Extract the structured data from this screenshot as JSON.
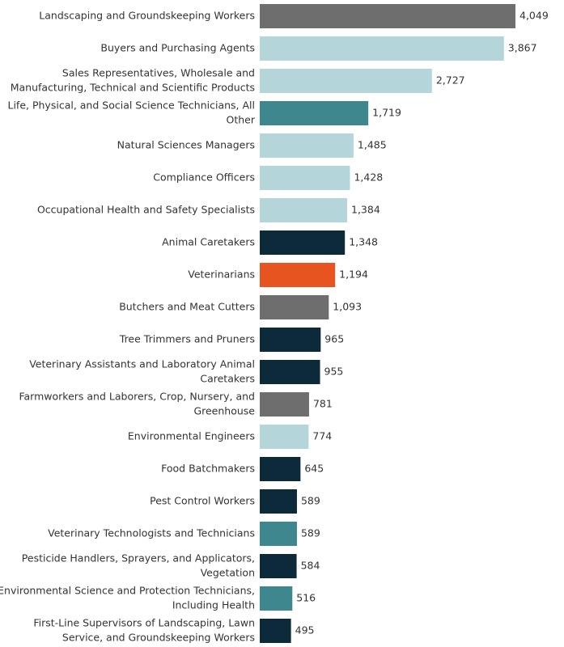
{
  "chart_data": {
    "type": "bar",
    "orientation": "horizontal",
    "title": "",
    "xlabel": "",
    "ylabel": "",
    "xlim": [
      0,
      4300
    ],
    "grid": false,
    "legend": "none",
    "categories": [
      [
        "Landscaping and Groundskeeping Workers"
      ],
      [
        "Buyers and Purchasing Agents"
      ],
      [
        "Sales Representatives, Wholesale and",
        "Manufacturing, Technical and Scientific Products"
      ],
      [
        "Life, Physical, and Social Science Technicians, All",
        "Other"
      ],
      [
        "Natural Sciences Managers"
      ],
      [
        "Compliance Officers"
      ],
      [
        "Occupational Health and Safety Specialists"
      ],
      [
        "Animal Caretakers"
      ],
      [
        "Veterinarians"
      ],
      [
        "Butchers and Meat Cutters"
      ],
      [
        "Tree Trimmers and Pruners"
      ],
      [
        "Veterinary Assistants and Laboratory Animal",
        "Caretakers"
      ],
      [
        "Farmworkers and Laborers, Crop, Nursery, and",
        "Greenhouse"
      ],
      [
        "Environmental Engineers"
      ],
      [
        "Food Batchmakers"
      ],
      [
        "Pest Control Workers"
      ],
      [
        "Veterinary Technologists and Technicians"
      ],
      [
        "Pesticide Handlers, Sprayers, and Applicators,",
        "Vegetation"
      ],
      [
        "Environmental Science and Protection Technicians,",
        "Including Health"
      ],
      [
        "First-Line Supervisors of Landscaping, Lawn",
        "Service, and Groundskeeping Workers"
      ]
    ],
    "values": [
      4049,
      3867,
      2727,
      1719,
      1485,
      1428,
      1384,
      1348,
      1194,
      1093,
      965,
      955,
      781,
      774,
      645,
      589,
      589,
      584,
      516,
      495
    ],
    "value_labels": [
      "4,049",
      "3,867",
      "2,727",
      "1,719",
      "1,485",
      "1,428",
      "1,384",
      "1,348",
      "1,194",
      "1,093",
      "965",
      "955",
      "781",
      "774",
      "645",
      "589",
      "589",
      "584",
      "516",
      "495"
    ],
    "bar_colors": [
      "#6e6e6e",
      "#b4d6db",
      "#b4d6db",
      "#3e878f",
      "#b4d6db",
      "#b4d6db",
      "#b4d6db",
      "#0d2a3a",
      "#e8541f",
      "#6e6e6e",
      "#0d2a3a",
      "#0d2a3a",
      "#6e6e6e",
      "#b4d6db",
      "#0d2a3a",
      "#0d2a3a",
      "#3e878f",
      "#0d2a3a",
      "#3e878f",
      "#0d2a3a"
    ]
  }
}
